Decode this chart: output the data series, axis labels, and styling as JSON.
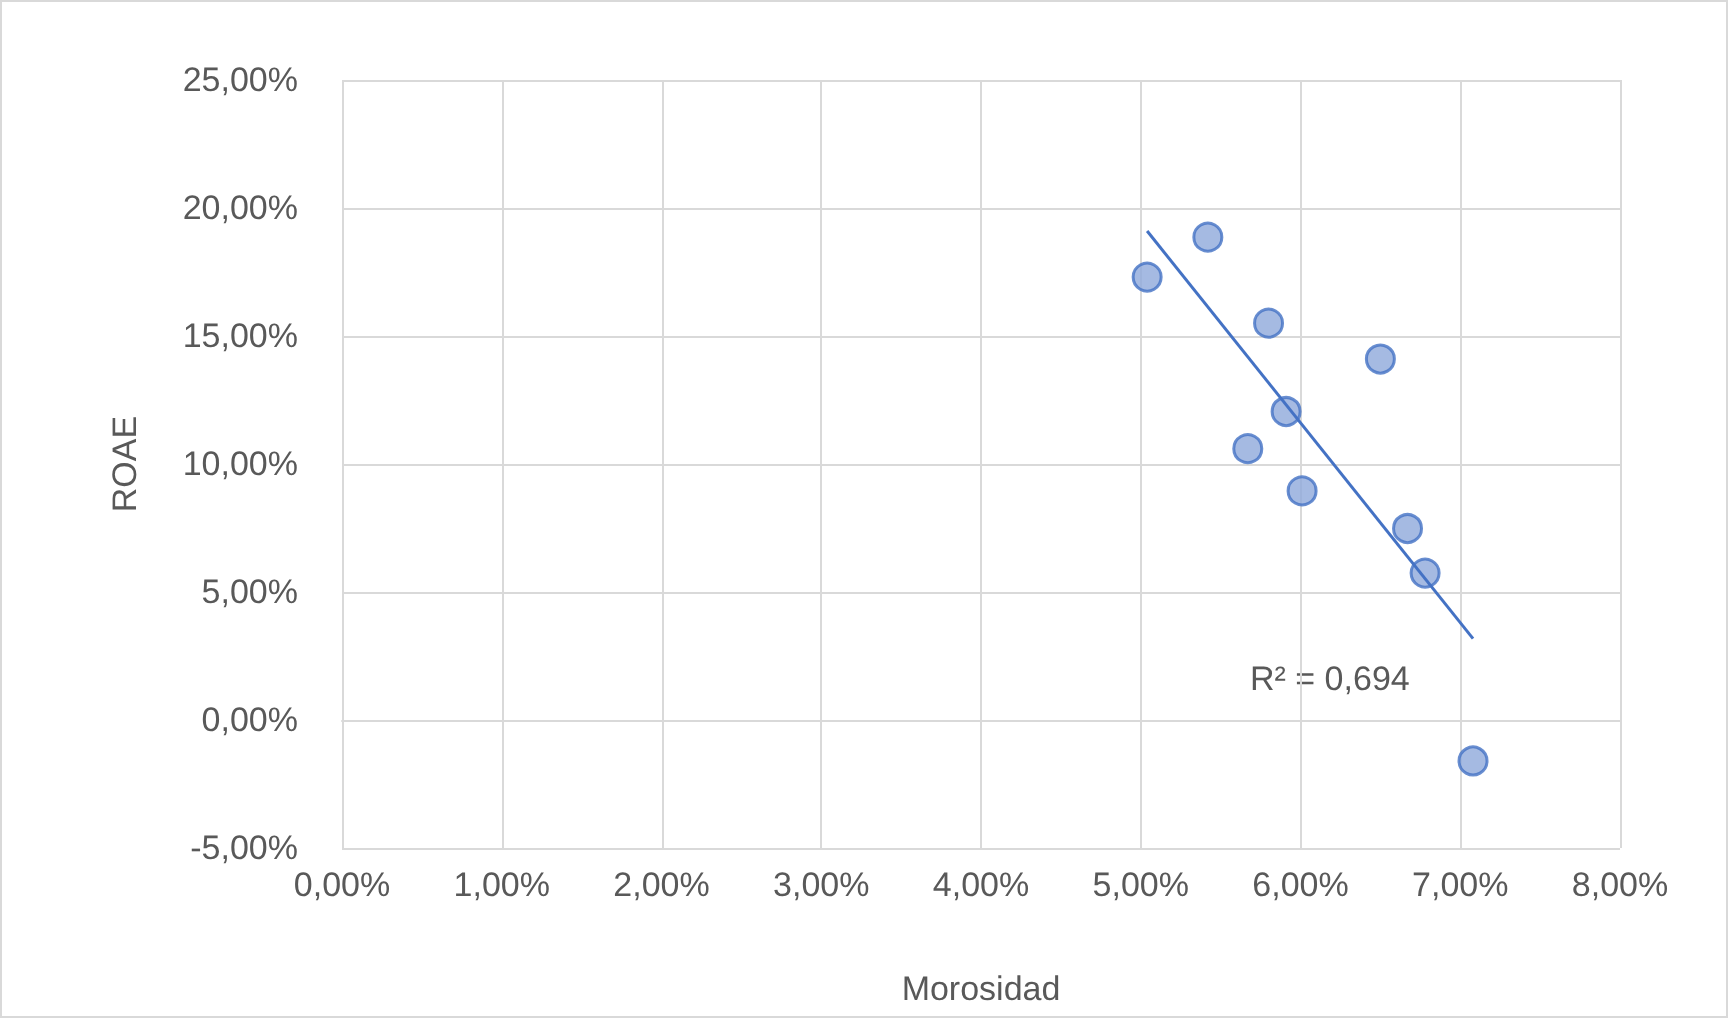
{
  "chart_data": {
    "type": "scatter",
    "xlabel": "Morosidad",
    "ylabel": "ROAE",
    "xlim": [
      0,
      8
    ],
    "ylim": [
      -5,
      25
    ],
    "xticks": [
      {
        "value": 0,
        "label": "0,00%"
      },
      {
        "value": 1,
        "label": "1,00%"
      },
      {
        "value": 2,
        "label": "2,00%"
      },
      {
        "value": 3,
        "label": "3,00%"
      },
      {
        "value": 4,
        "label": "4,00%"
      },
      {
        "value": 5,
        "label": "5,00%"
      },
      {
        "value": 6,
        "label": "6,00%"
      },
      {
        "value": 7,
        "label": "7,00%"
      },
      {
        "value": 8,
        "label": "8,00%"
      }
    ],
    "yticks": [
      {
        "value": -5,
        "label": "-5,00%"
      },
      {
        "value": 0,
        "label": "0,00%"
      },
      {
        "value": 5,
        "label": "5,00%"
      },
      {
        "value": 10,
        "label": "10,00%"
      },
      {
        "value": 15,
        "label": "15,00%"
      },
      {
        "value": 20,
        "label": "20,00%"
      },
      {
        "value": 25,
        "label": "25,00%"
      }
    ],
    "grid": true,
    "marker": "circle",
    "series": [
      {
        "color": "#8ea9db",
        "x": [
          5.04,
          5.42,
          5.8,
          6.5,
          5.91,
          5.67,
          6.01,
          6.67,
          6.78,
          7.08
        ],
        "values": [
          17.3,
          18.86,
          15.5,
          14.1,
          12.05,
          10.6,
          8.95,
          7.48,
          5.74,
          -1.6
        ]
      },
      {
        "type": "line",
        "color": "#4472c4",
        "x": [
          5.04,
          7.08
        ],
        "values": [
          19.1,
          3.18
        ],
        "marker": "none",
        "line_style": "solid"
      }
    ],
    "annotations": [
      "R² = 0,694"
    ]
  }
}
